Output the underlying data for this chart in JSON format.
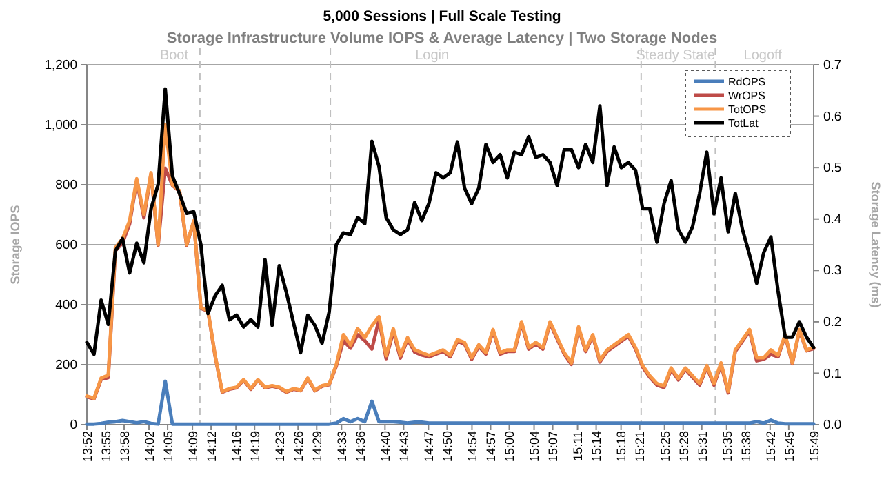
{
  "chart_data": {
    "type": "line",
    "title": "5,000 Sessions  |  Full Scale Testing",
    "subtitle": "Storage Infrastructure Volume IOPS & Average Latency | Two Storage Nodes",
    "ylabel": "Storage IOPS",
    "y2label": "Storage Latency (ms)",
    "x": [
      13.8667,
      13.8858,
      13.9049,
      13.9241,
      13.9432,
      13.9623,
      13.9814,
      14.0005,
      14.0197,
      14.0388,
      14.0579,
      14.077,
      14.0961,
      14.1153,
      14.1344,
      14.1535,
      14.1726,
      14.1917,
      14.2109,
      14.23,
      14.2491,
      14.2682,
      14.2873,
      14.3065,
      14.3256,
      14.3447,
      14.3638,
      14.3829,
      14.4021,
      14.4212,
      14.4403,
      14.4594,
      14.4785,
      14.4977,
      14.5168,
      14.5359,
      14.555,
      14.5741,
      14.5933,
      14.6124,
      14.6315,
      14.6506,
      14.6697,
      14.6889,
      14.708,
      14.7271,
      14.7462,
      14.7653,
      14.7845,
      14.8036,
      14.8227,
      14.8418,
      14.8609,
      14.8801,
      14.8992,
      14.9183,
      14.9374,
      14.9565,
      14.9757,
      14.9948,
      15.0139,
      15.033,
      15.0521,
      15.0713,
      15.0904,
      15.1095,
      15.1286,
      15.1477,
      15.1669,
      15.186,
      15.2051,
      15.2242,
      15.2433,
      15.2625,
      15.2816,
      15.3007,
      15.3198,
      15.3389,
      15.3581,
      15.3772,
      15.3963,
      15.4154,
      15.4345,
      15.4537,
      15.4728,
      15.4919,
      15.511,
      15.5301,
      15.5493,
      15.5684,
      15.5875,
      15.6066,
      15.6257,
      15.6449,
      15.664,
      15.6831,
      15.7022,
      15.7213,
      15.7405,
      15.7596,
      15.7787,
      15.7978,
      15.8169
    ],
    "series": [
      {
        "name": "RdOPS",
        "color": "#4a7ebb",
        "values": [
          2,
          2,
          4,
          8,
          10,
          14,
          10,
          6,
          10,
          4,
          2,
          145,
          2,
          2,
          2,
          2,
          2,
          2,
          2,
          2,
          2,
          2,
          2,
          2,
          2,
          2,
          2,
          2,
          2,
          2,
          2,
          2,
          2,
          2,
          2,
          5,
          20,
          10,
          20,
          10,
          78,
          10,
          10,
          10,
          8,
          5,
          8,
          8,
          5,
          5,
          5,
          5,
          5,
          5,
          5,
          5,
          5,
          5,
          5,
          5,
          5,
          5,
          5,
          5,
          5,
          5,
          5,
          5,
          5,
          5,
          5,
          5,
          5,
          5,
          5,
          5,
          5,
          5,
          5,
          5,
          5,
          5,
          5,
          5,
          5,
          5,
          5,
          5,
          5,
          5,
          5,
          5,
          5,
          5,
          10,
          5,
          15,
          5,
          3,
          3,
          3,
          3,
          3
        ]
      },
      {
        "name": "WrOPS",
        "color": "#be4b48",
        "values": [
          93,
          86,
          151,
          157,
          580,
          606,
          670,
          814,
          690,
          836,
          598,
          855,
          798,
          778,
          598,
          678,
          388,
          378,
          228,
          108,
          118,
          123,
          148,
          118,
          148,
          123,
          128,
          123,
          108,
          118,
          113,
          153,
          113,
          128,
          133,
          195,
          280,
          255,
          300,
          280,
          252,
          350,
          220,
          310,
          222,
          285,
          242,
          232,
          226,
          235,
          244,
          226,
          278,
          269,
          218,
          261,
          235,
          312,
          235,
          244,
          244,
          338,
          252,
          269,
          252,
          338,
          286,
          235,
          201,
          321,
          244,
          295,
          209,
          244,
          261,
          278,
          295,
          252,
          192,
          158,
          132,
          124,
          184,
          149,
          184,
          158,
          132,
          192,
          132,
          201,
          106,
          244,
          278,
          312,
          213,
          218,
          234,
          226,
          297,
          203,
          314,
          246,
          254
        ]
      },
      {
        "name": "TotOPS",
        "color": "#f79646",
        "values": [
          95,
          88,
          155,
          165,
          590,
          620,
          680,
          820,
          700,
          840,
          600,
          1000,
          800,
          780,
          600,
          680,
          390,
          380,
          230,
          110,
          120,
          125,
          150,
          120,
          150,
          125,
          130,
          125,
          110,
          120,
          115,
          155,
          115,
          130,
          135,
          200,
          300,
          265,
          320,
          290,
          330,
          360,
          230,
          320,
          230,
          290,
          250,
          240,
          231,
          240,
          249,
          231,
          283,
          274,
          223,
          266,
          240,
          317,
          240,
          249,
          249,
          343,
          257,
          274,
          257,
          343,
          291,
          240,
          206,
          326,
          249,
          300,
          214,
          249,
          266,
          283,
          300,
          257,
          197,
          163,
          137,
          129,
          189,
          154,
          189,
          163,
          137,
          197,
          137,
          206,
          111,
          249,
          283,
          317,
          223,
          223,
          249,
          231,
          300,
          206,
          317,
          249,
          257
        ]
      },
      {
        "name": "TotLat",
        "color": "#000000",
        "axis": "y2",
        "values": [
          0.16,
          0.137,
          0.242,
          0.195,
          0.338,
          0.362,
          0.295,
          0.353,
          0.315,
          0.42,
          0.467,
          0.653,
          0.484,
          0.449,
          0.411,
          0.414,
          0.35,
          0.216,
          0.251,
          0.271,
          0.204,
          0.213,
          0.19,
          0.204,
          0.19,
          0.321,
          0.193,
          0.309,
          0.257,
          0.198,
          0.14,
          0.213,
          0.193,
          0.158,
          0.219,
          0.35,
          0.373,
          0.37,
          0.403,
          0.391,
          0.551,
          0.502,
          0.403,
          0.379,
          0.37,
          0.379,
          0.432,
          0.397,
          0.43,
          0.49,
          0.48,
          0.49,
          0.55,
          0.46,
          0.43,
          0.46,
          0.545,
          0.51,
          0.525,
          0.48,
          0.53,
          0.525,
          0.56,
          0.52,
          0.525,
          0.51,
          0.465,
          0.535,
          0.535,
          0.5,
          0.545,
          0.51,
          0.62,
          0.465,
          0.54,
          0.5,
          0.51,
          0.495,
          0.42,
          0.42,
          0.355,
          0.43,
          0.475,
          0.38,
          0.355,
          0.385,
          0.45,
          0.53,
          0.41,
          0.48,
          0.375,
          0.45,
          0.38,
          0.33,
          0.275,
          0.335,
          0.365,
          0.26,
          0.17,
          0.17,
          0.2,
          0.17,
          0.15
        ]
      }
    ],
    "xlim": [
      13.8667,
      15.8169
    ],
    "xticks": [
      {
        "value": 13.8667,
        "label": "13:52"
      },
      {
        "value": 13.9167,
        "label": "13:55"
      },
      {
        "value": 13.9667,
        "label": "13:58"
      },
      {
        "value": 14.0333,
        "label": "14:02"
      },
      {
        "value": 14.0833,
        "label": "14:05"
      },
      {
        "value": 14.15,
        "label": "14:09"
      },
      {
        "value": 14.2,
        "label": "14:12"
      },
      {
        "value": 14.2667,
        "label": "14:16"
      },
      {
        "value": 14.3167,
        "label": "14:19"
      },
      {
        "value": 14.3833,
        "label": "14:23"
      },
      {
        "value": 14.4333,
        "label": "14:26"
      },
      {
        "value": 14.4833,
        "label": "14:29"
      },
      {
        "value": 14.55,
        "label": "14:33"
      },
      {
        "value": 14.6,
        "label": "14:36"
      },
      {
        "value": 14.6667,
        "label": "14:40"
      },
      {
        "value": 14.7167,
        "label": "14:43"
      },
      {
        "value": 14.7833,
        "label": "14:47"
      },
      {
        "value": 14.8333,
        "label": "14:50"
      },
      {
        "value": 14.9,
        "label": "14:54"
      },
      {
        "value": 14.95,
        "label": "14:57"
      },
      {
        "value": 15,
        "label": "15:00"
      },
      {
        "value": 15.0667,
        "label": "15:04"
      },
      {
        "value": 15.1167,
        "label": "15:07"
      },
      {
        "value": 15.1833,
        "label": "15:11"
      },
      {
        "value": 15.2333,
        "label": "15:14"
      },
      {
        "value": 15.3,
        "label": "15:18"
      },
      {
        "value": 15.35,
        "label": "15:21"
      },
      {
        "value": 15.4167,
        "label": "15:25"
      },
      {
        "value": 15.4667,
        "label": "15:28"
      },
      {
        "value": 15.5167,
        "label": "15:31"
      },
      {
        "value": 15.5833,
        "label": "15:35"
      },
      {
        "value": 15.6333,
        "label": "15:38"
      },
      {
        "value": 15.7,
        "label": "15:42"
      },
      {
        "value": 15.75,
        "label": "15:45"
      },
      {
        "value": 15.8167,
        "label": "15:49"
      }
    ],
    "ylim": [
      0,
      1200
    ],
    "yticks": [
      0,
      200,
      400,
      600,
      800,
      {
        "value": 1000,
        "label": "1,000"
      },
      {
        "value": 1200,
        "label": "1,200"
      }
    ],
    "y2lim": [
      0,
      0.7
    ],
    "y2ticks": [
      {
        "value": 0,
        "label": "0.0"
      },
      0.1,
      0.2,
      0.3,
      0.4,
      0.5,
      0.6,
      0.7
    ],
    "grid": "y",
    "legend": "top right",
    "line_style": "solid",
    "ref_lines": [
      {
        "axis": "x",
        "value": 14.17,
        "color": "#c0c0c0",
        "line_style": "dashed"
      },
      {
        "axis": "x",
        "value": 14.52,
        "color": "#c0c0c0",
        "line_style": "dashed"
      },
      {
        "axis": "x",
        "value": 15.354,
        "color": "#c0c0c0",
        "line_style": "dashed"
      },
      {
        "axis": "x",
        "value": 15.553,
        "color": "#c0c0c0",
        "line_style": "dashed"
      }
    ],
    "annotations": [
      "Boot",
      "Login",
      "Steady State",
      "Logoff"
    ]
  }
}
